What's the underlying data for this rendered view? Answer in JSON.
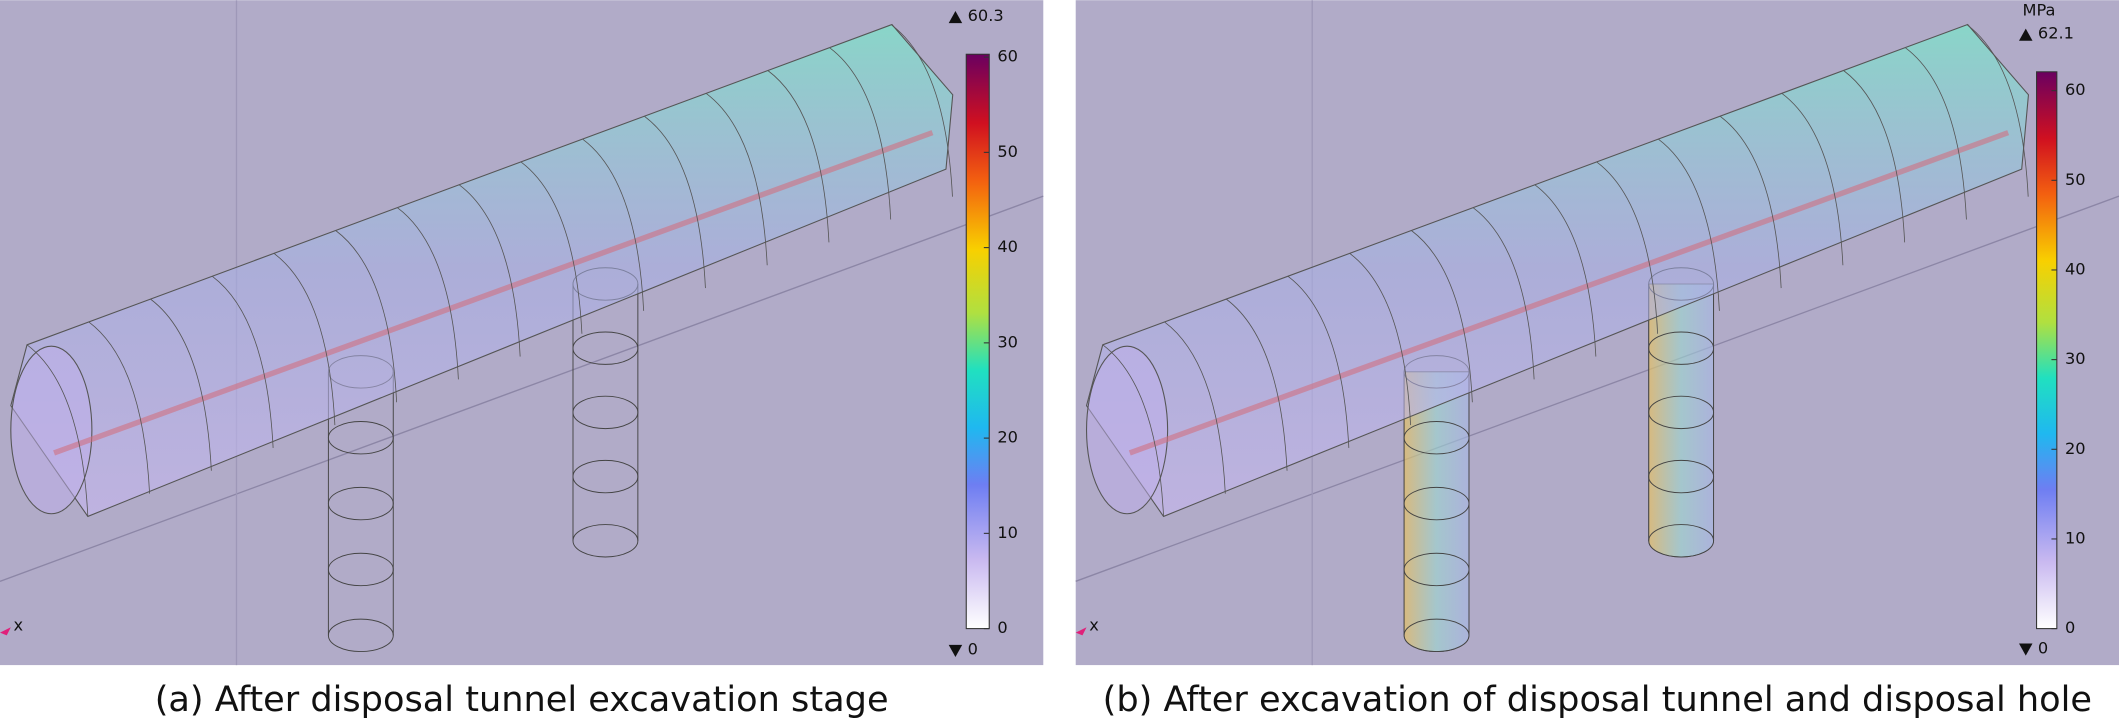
{
  "panels": [
    {
      "caption": "(a) After disposal tunnel excavation stage",
      "axis_label": "x",
      "colorbar": {
        "max": 60.3,
        "min": 0,
        "ticks": [
          0,
          10,
          20,
          30,
          40,
          50,
          60
        ]
      }
    },
    {
      "caption": "(b) After excavation of disposal tunnel and disposal hole",
      "axis_label": "x",
      "unit": "MPa",
      "colorbar": {
        "max": 62.1,
        "min": 0,
        "ticks": [
          0,
          10,
          20,
          30,
          40,
          50,
          60
        ]
      }
    }
  ]
}
